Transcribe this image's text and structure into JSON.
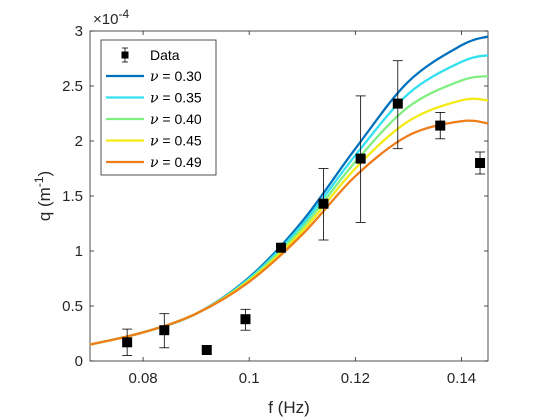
{
  "chart_data": {
    "type": "line",
    "xlabel": "f (Hz)",
    "ylabel_main": "q (m",
    "ylabel_sup": "-1",
    "ylabel_close": ")",
    "xlim": [
      0.07,
      0.145
    ],
    "ylim": [
      0,
      3
    ],
    "y_multiplier_base": "×10",
    "y_multiplier_exp": "-4",
    "x_ticks": [
      0.08,
      0.1,
      0.12,
      0.14
    ],
    "x_tick_labels": [
      "0.08",
      "0.1",
      "0.12",
      "0.14"
    ],
    "y_ticks": [
      0,
      0.5,
      1,
      1.5,
      2,
      2.5,
      3
    ],
    "y_tick_labels": [
      "0",
      "0.5",
      "1",
      "1.5",
      "2",
      "2.5",
      "3"
    ],
    "grid": false,
    "legend_position": "top-left",
    "data_series": {
      "name": "Data",
      "x": [
        0.077,
        0.084,
        0.092,
        0.0993,
        0.106,
        0.114,
        0.121,
        0.128,
        0.136,
        0.1435
      ],
      "y": [
        0.17,
        0.28,
        0.1,
        0.38,
        1.03,
        1.43,
        1.84,
        2.34,
        2.14,
        1.8
      ],
      "err_low": [
        0.12,
        0.16,
        0.0,
        0.1,
        0.0,
        0.33,
        0.58,
        0.41,
        0.12,
        0.1
      ],
      "err_high": [
        0.12,
        0.15,
        0.0,
        0.09,
        0.0,
        0.32,
        0.57,
        0.39,
        0.12,
        0.1
      ]
    },
    "series": [
      {
        "label_prefix": "ν",
        "label_value": " = 0.30",
        "color": "#0072BD",
        "x": [
          0.07,
          0.08,
          0.09,
          0.1,
          0.11,
          0.12,
          0.13,
          0.14,
          0.145
        ],
        "y": [
          0.15,
          0.26,
          0.43,
          0.76,
          1.27,
          1.93,
          2.54,
          2.87,
          2.95
        ]
      },
      {
        "label_prefix": "ν",
        "label_value": " = 0.35",
        "color": "#33E0F0",
        "x": [
          0.07,
          0.08,
          0.09,
          0.1,
          0.11,
          0.12,
          0.13,
          0.14,
          0.145
        ],
        "y": [
          0.15,
          0.26,
          0.43,
          0.75,
          1.24,
          1.87,
          2.43,
          2.72,
          2.78
        ]
      },
      {
        "label_prefix": "ν",
        "label_value": " = 0.40",
        "color": "#80EE80",
        "x": [
          0.07,
          0.08,
          0.09,
          0.1,
          0.11,
          0.12,
          0.13,
          0.14,
          0.145
        ],
        "y": [
          0.15,
          0.26,
          0.43,
          0.74,
          1.21,
          1.81,
          2.31,
          2.55,
          2.59
        ]
      },
      {
        "label_prefix": "ν",
        "label_value": " = 0.45",
        "color": "#F2EA10",
        "x": [
          0.07,
          0.08,
          0.09,
          0.1,
          0.11,
          0.12,
          0.13,
          0.14,
          0.145
        ],
        "y": [
          0.15,
          0.26,
          0.43,
          0.73,
          1.18,
          1.75,
          2.18,
          2.37,
          2.37
        ]
      },
      {
        "label_prefix": "ν",
        "label_value": " = 0.49",
        "color": "#EE7D1A",
        "x": [
          0.07,
          0.08,
          0.09,
          0.1,
          0.11,
          0.12,
          0.13,
          0.14,
          0.145
        ],
        "y": [
          0.15,
          0.26,
          0.43,
          0.72,
          1.15,
          1.68,
          2.05,
          2.18,
          2.16
        ]
      }
    ]
  }
}
